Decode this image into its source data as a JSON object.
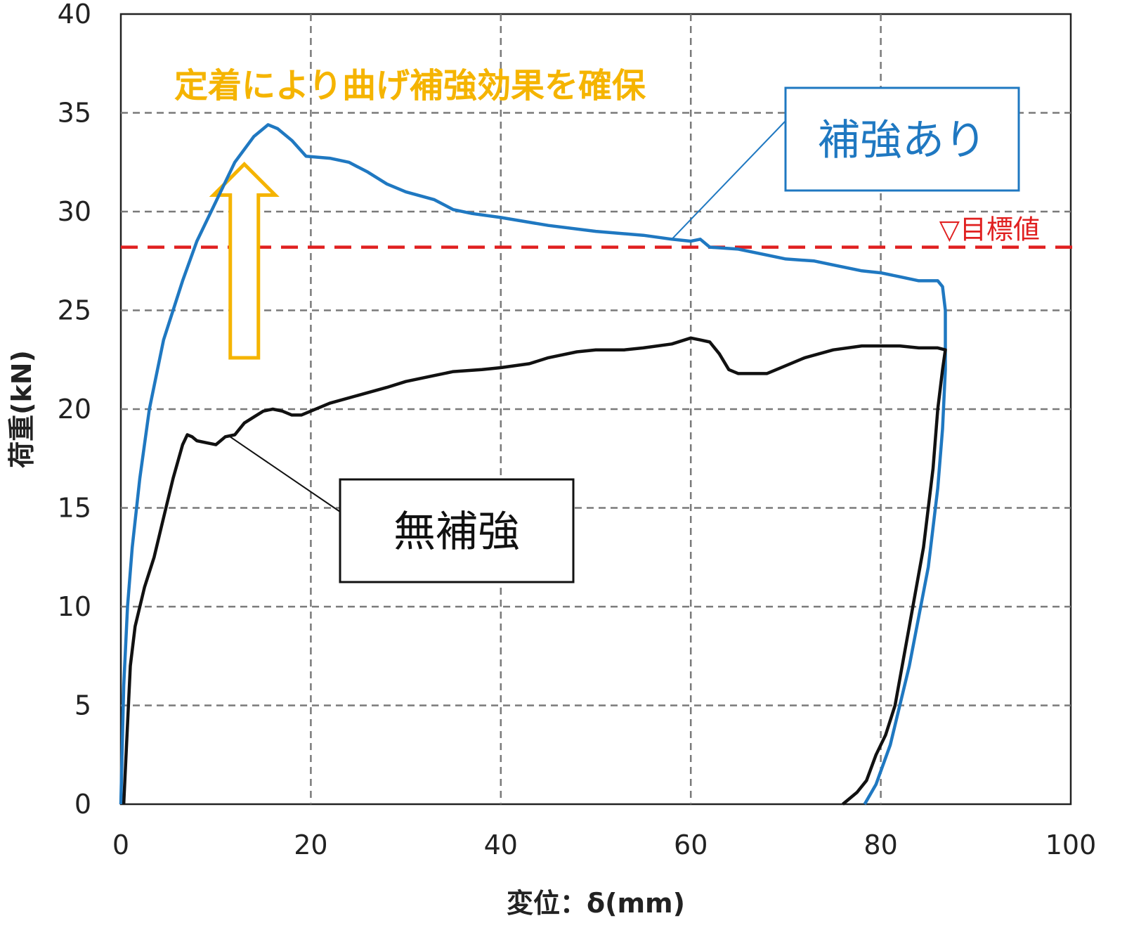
{
  "chart_data": {
    "type": "line",
    "title": "",
    "xlabel": "変位：δ(mm)",
    "ylabel": "荷重(kN)",
    "xlim": [
      0,
      100
    ],
    "ylim": [
      0,
      40
    ],
    "xticks": [
      0,
      20,
      40,
      60,
      80,
      100
    ],
    "yticks": [
      0,
      5,
      10,
      15,
      20,
      25,
      30,
      35,
      40
    ],
    "grid": true,
    "series": [
      {
        "name": "補強あり",
        "color": "#1F78C1",
        "x": [
          0,
          0.3,
          0.7,
          1.2,
          2,
          3,
          4.5,
          6.5,
          8,
          10,
          12,
          14,
          15.5,
          16.5,
          18,
          19.5,
          22,
          24,
          26,
          28,
          30,
          33,
          35,
          37,
          40,
          45,
          50,
          55,
          58,
          60,
          61,
          62,
          65,
          68,
          70,
          73,
          75,
          78,
          80,
          82,
          84,
          86,
          86.5,
          86.8,
          86.8,
          86.5,
          86,
          85,
          83,
          81,
          79.5,
          78.3
        ],
        "y": [
          0,
          6,
          10,
          13,
          16.5,
          20,
          23.5,
          26.5,
          28.5,
          30.5,
          32.5,
          33.8,
          34.4,
          34.2,
          33.6,
          32.8,
          32.7,
          32.5,
          32,
          31.4,
          31,
          30.6,
          30.1,
          29.9,
          29.7,
          29.3,
          29,
          28.8,
          28.6,
          28.5,
          28.6,
          28.2,
          28.1,
          27.8,
          27.6,
          27.5,
          27.3,
          27,
          26.9,
          26.7,
          26.5,
          26.5,
          26.2,
          25,
          22,
          19,
          16,
          12,
          7,
          3,
          1,
          0
        ]
      },
      {
        "name": "無補強",
        "color": "#111111",
        "x": [
          0.3,
          0.6,
          1,
          1.5,
          2.5,
          3.5,
          4.5,
          5.5,
          6.5,
          7,
          7.5,
          8,
          9,
          10,
          11,
          12,
          13,
          14,
          15,
          16,
          17,
          18,
          19,
          20,
          22,
          25,
          28,
          30,
          33,
          35,
          38,
          40,
          43,
          45,
          48,
          50,
          53,
          55,
          58,
          60,
          61,
          62,
          63,
          64,
          65,
          66,
          68,
          70,
          72,
          75,
          78,
          80,
          82,
          84,
          86,
          86.8,
          86.5,
          86,
          85.5,
          84.5,
          83,
          81.5,
          80.5,
          79.5,
          78.5,
          77.5,
          76.5,
          76
        ],
        "y": [
          0,
          3,
          7,
          9,
          11,
          12.5,
          14.5,
          16.5,
          18.2,
          18.7,
          18.6,
          18.4,
          18.3,
          18.2,
          18.6,
          18.7,
          19.3,
          19.6,
          19.9,
          20,
          19.9,
          19.7,
          19.7,
          19.9,
          20.3,
          20.7,
          21.1,
          21.4,
          21.7,
          21.9,
          22,
          22.1,
          22.3,
          22.6,
          22.9,
          23,
          23,
          23.1,
          23.3,
          23.6,
          23.5,
          23.4,
          22.8,
          22,
          21.8,
          21.8,
          21.8,
          22.2,
          22.6,
          23,
          23.2,
          23.2,
          23.2,
          23.1,
          23.1,
          23,
          22,
          20,
          17,
          13,
          9,
          5,
          3.5,
          2.5,
          1.2,
          0.6,
          0.2,
          0
        ]
      }
    ],
    "target_line": {
      "label": "▽目標値",
      "y": 28.2,
      "color": "#E02020"
    },
    "annotations": [
      {
        "text": "定着により曲げ補強効果を確保",
        "color": "#F5B400"
      },
      {
        "text": "補強あり",
        "color": "#1F78C1",
        "pointer_x": 58,
        "pointer_y": 28.6
      },
      {
        "text": "無補強",
        "color": "#111111",
        "pointer_x": 11.5,
        "pointer_y": 18.6
      }
    ],
    "arrow": {
      "from_y": 22.6,
      "to_y": 32.4,
      "x": 13,
      "color": "#F5B400"
    }
  }
}
